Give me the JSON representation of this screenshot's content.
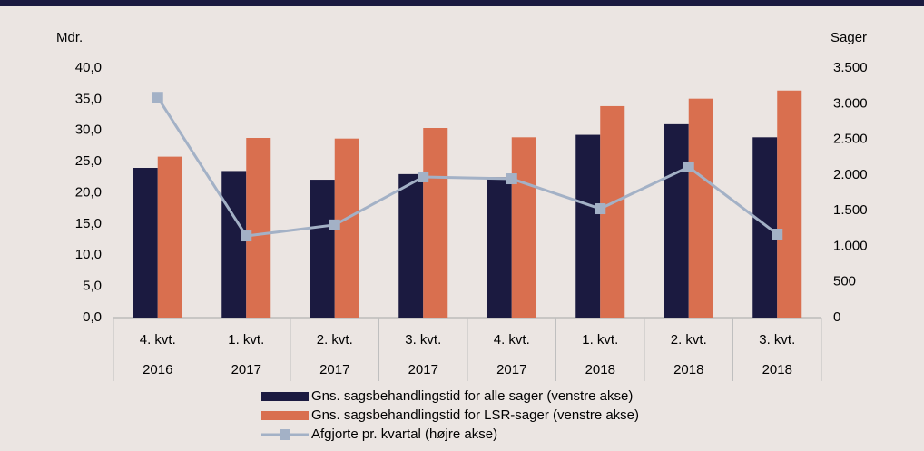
{
  "chart_data": {
    "type": "bar",
    "y_axis_label": "Mdr.",
    "y2_axis_label": "Sager",
    "categories": [
      "4. kvt.",
      "1. kvt.",
      "2. kvt.",
      "3. kvt.",
      "4. kvt.",
      "1. kvt.",
      "2. kvt.",
      "3. kvt."
    ],
    "category_years": [
      "2016",
      "2017",
      "2017",
      "2017",
      "2017",
      "2018",
      "2018",
      "2018"
    ],
    "series": [
      {
        "name": "Gns. sagsbehandlingstid for alle sager (venstre akse)",
        "color": "#1b1a40",
        "type": "bar",
        "values": [
          24.0,
          23.5,
          22.1,
          23.0,
          22.5,
          29.3,
          31.0,
          28.9
        ]
      },
      {
        "name": "Gns. sagsbehandlingstid for LSR-sager (venstre akse)",
        "color": "#d96f4f",
        "type": "bar",
        "values": [
          25.8,
          28.8,
          28.7,
          30.4,
          28.9,
          33.9,
          35.1,
          36.4
        ]
      },
      {
        "name": "Afgjorte pr. kvartal (højre akse)",
        "color": "#a3b1c6",
        "type": "line",
        "axis": "y2",
        "values": [
          3090,
          1145,
          1300,
          1973,
          1947,
          1527,
          2113,
          1171
        ]
      }
    ],
    "ylim": [
      0,
      40
    ],
    "yticks": [
      {
        "value": 0,
        "label": "0,0"
      },
      {
        "value": 5,
        "label": "5,0"
      },
      {
        "value": 10,
        "label": "10,0"
      },
      {
        "value": 15,
        "label": "15,0"
      },
      {
        "value": 20,
        "label": "20,0"
      },
      {
        "value": 25,
        "label": "25,0"
      },
      {
        "value": 30,
        "label": "30,0"
      },
      {
        "value": 35,
        "label": "35,0"
      },
      {
        "value": 40,
        "label": "40,0"
      }
    ],
    "y2lim": [
      0,
      3500
    ],
    "y2ticks": [
      0,
      500,
      {
        "value": 1000,
        "label": "1.000"
      },
      {
        "value": 1500,
        "label": "1.500"
      },
      {
        "value": 2000,
        "label": "2.000"
      },
      {
        "value": 2500,
        "label": "2.500"
      },
      {
        "value": 3000,
        "label": "3.000"
      },
      {
        "value": 3500,
        "label": "3.500"
      }
    ],
    "legend": "bottom"
  }
}
